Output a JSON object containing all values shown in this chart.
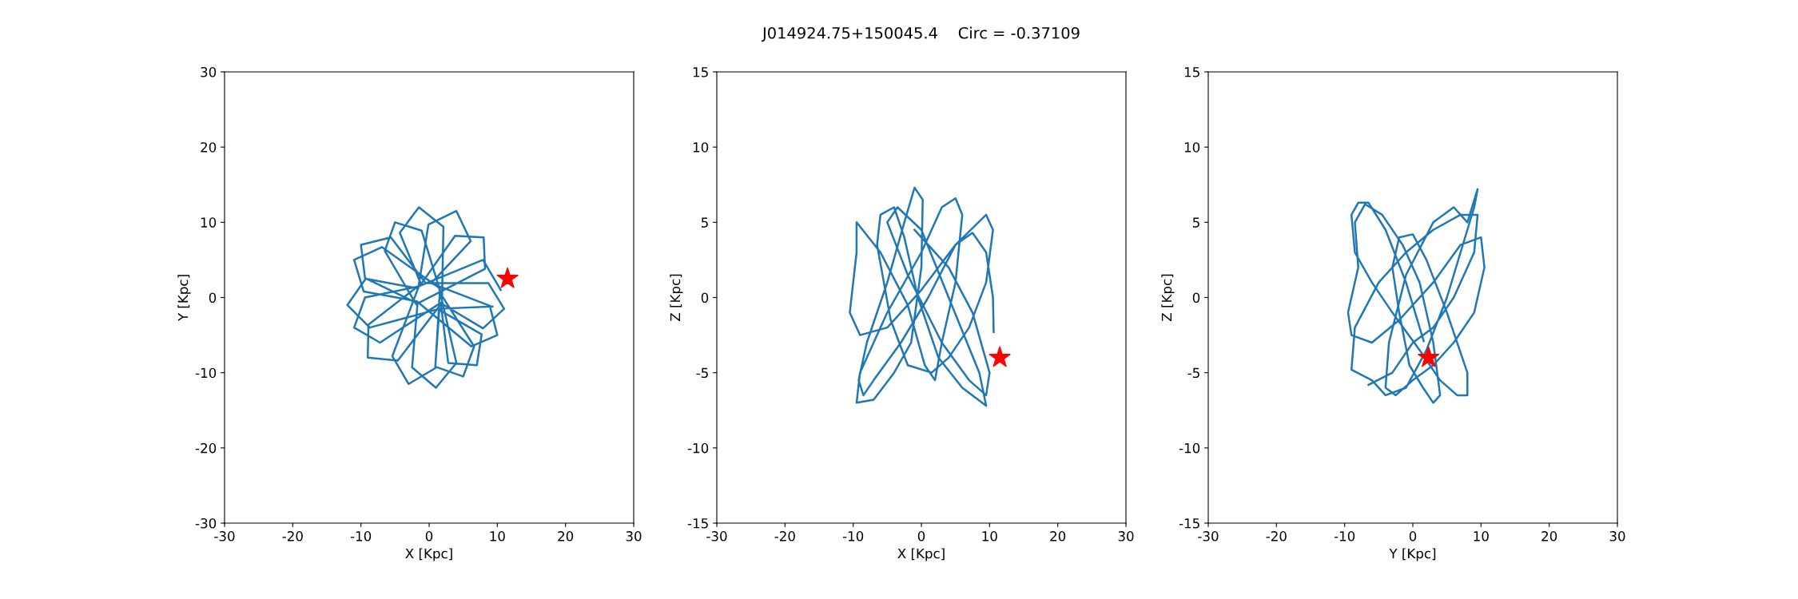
{
  "chart_data": [
    {
      "type": "line",
      "xlabel": "X [Kpc]",
      "ylabel": "Y [Kpc]",
      "xlim": [
        -30,
        30
      ],
      "ylim": [
        -30,
        30
      ],
      "xticks": [
        -30,
        -20,
        -10,
        0,
        10,
        20,
        30
      ],
      "yticks": [
        -30,
        -20,
        -10,
        0,
        10,
        20,
        30
      ],
      "grid": false,
      "series": [
        {
          "color": "#1f77b4",
          "marker": "none",
          "x": [
            10.5,
            7.9,
            -1.5,
            -5.4,
            -3,
            0.9,
            1.6,
            -6.9,
            -11,
            -9.6,
            -1.8,
            6.2,
            10,
            8.9,
            0.3,
            6.1,
            4,
            -0.1,
            -1.6,
            -9.3,
            -12,
            -8.7,
            1.5,
            0.9,
            5,
            6.6,
            1.9,
            2.1,
            -1.5,
            -4.3,
            -1.2,
            -8.9,
            -9,
            -4.6,
            1.8,
            7.9,
            11,
            8.7,
            -0.5,
            -5.6,
            -10,
            -9.4,
            -1.7,
            -2.5,
            1,
            4,
            1.4,
            -1.1,
            -5,
            -6.5,
            -1.9,
            8.2,
            8,
            3.8,
            -1.4,
            -9.4,
            -11,
            -7.2,
            1.7,
            2.8,
            7,
            7.7,
            1.2,
            9.3
          ],
          "values": [
            1.0,
            5.0,
            1.5,
            -7.8,
            -11.5,
            -9.4,
            1.2,
            6.7,
            5,
            0.8,
            -0.5,
            -6.5,
            -5,
            -1.1,
            1.9,
            7.5,
            11.5,
            9.7,
            1.2,
            2.5,
            -1,
            -4.0,
            -1.5,
            -9.2,
            -10.5,
            -6.5,
            0.2,
            9.4,
            12,
            8.6,
            1.8,
            -3.6,
            -8,
            -8.4,
            -0.8,
            -4.1,
            -1.5,
            1.9,
            1.9,
            8.0,
            7,
            2.6,
            -0.8,
            -9.3,
            -12,
            -8.7,
            1.5,
            8.9,
            10,
            6.2,
            -0.9,
            3.8,
            8,
            8.2,
            1.5,
            0,
            -4,
            -6.0,
            -0.7,
            -8.7,
            -9,
            -4.9,
            -1.5,
            -1.2
          ]
        },
        {
          "type": "scatter",
          "color": "#ff0000",
          "marker": "star",
          "x": [
            11.5
          ],
          "values": [
            2.5
          ]
        }
      ]
    },
    {
      "type": "line",
      "title": "J014924.75+150045.4    Circ = -0.37109",
      "xlabel": "X [Kpc]",
      "ylabel": "Z [Kpc]",
      "xlim": [
        -30,
        30
      ],
      "ylim": [
        -15,
        15
      ],
      "xticks": [
        -30,
        -20,
        -10,
        0,
        10,
        20,
        30
      ],
      "yticks": [
        -15,
        -10,
        -5,
        0,
        5,
        10,
        15
      ],
      "grid": false,
      "series": [
        {
          "color": "#1f77b4",
          "marker": "none",
          "x": [
            10.6,
            10.5,
            9.5,
            7.5,
            5,
            1,
            -3,
            -7,
            -8.5,
            -9.2,
            -8,
            -5,
            -2.5,
            -1,
            0.2,
            0,
            -1.5,
            -4,
            -7,
            -9.5,
            -9,
            -5,
            0,
            3,
            5,
            6,
            5,
            3,
            2,
            0.5,
            -2,
            -6,
            -9.5,
            -9.5,
            -10.5,
            -9,
            -5,
            0,
            5,
            9.5,
            10.5,
            9.5,
            7,
            4,
            1.5,
            -2,
            -4.5,
            -6.5,
            -6,
            -4,
            -2.5,
            -0.5,
            2.5,
            6,
            9.5,
            8.5,
            4,
            0,
            -3.5,
            -5,
            -2,
            3,
            7,
            9.5,
            10,
            7.5,
            4,
            -1
          ],
          "values": [
            -2.3,
            0,
            3,
            4.3,
            3.5,
            0,
            -3,
            -5.5,
            -6.5,
            -5.5,
            -3,
            1,
            5,
            7.3,
            6.5,
            2,
            -3,
            -5,
            -6.8,
            -7,
            -5,
            -1,
            3,
            6,
            6.6,
            5.5,
            1,
            -3,
            -5.5,
            -4.5,
            -0.5,
            3,
            5,
            3,
            -1,
            -2.5,
            -2,
            0.5,
            3.5,
            5.5,
            4.5,
            1,
            -2,
            -4,
            -5,
            -4.5,
            -1.5,
            3.5,
            5.5,
            6,
            4,
            0,
            -4,
            -6,
            -7.2,
            -5,
            0,
            4.5,
            6,
            5,
            1.5,
            -3,
            -5.5,
            -6.5,
            -5,
            -1,
            2,
            4.5
          ]
        },
        {
          "type": "scatter",
          "color": "#ff0000",
          "marker": "star",
          "x": [
            11.5
          ],
          "values": [
            -4
          ]
        }
      ]
    },
    {
      "type": "line",
      "xlabel": "Y [Kpc]",
      "ylabel": "Z [Kpc]",
      "xlim": [
        -30,
        30
      ],
      "ylim": [
        -15,
        15
      ],
      "xticks": [
        -30,
        -20,
        -10,
        0,
        10,
        20,
        30
      ],
      "yticks": [
        -15,
        -10,
        -5,
        0,
        5,
        10,
        15
      ],
      "grid": false,
      "series": [
        {
          "color": "#1f77b4",
          "marker": "none",
          "x": [
            1.6,
            1,
            -1,
            -4,
            -6.5,
            -8,
            -9,
            -8.5,
            -6,
            -3,
            1,
            4,
            6.5,
            8,
            8,
            5,
            2,
            0,
            -2,
            -3,
            -2,
            -0.5,
            1.5,
            3,
            4,
            3,
            1,
            -1.5,
            -4.5,
            -7,
            -8.5,
            -8,
            -9.5,
            -9,
            -6,
            -2,
            3,
            7,
            10,
            10.5,
            9,
            6,
            3,
            0,
            -2.5,
            -4,
            -3.5,
            -1,
            3,
            6,
            8,
            9.5,
            9,
            5,
            2,
            -1,
            -4,
            -6,
            -9,
            -8.5,
            -5,
            -1,
            3,
            7,
            9.5,
            9,
            6,
            3,
            0,
            -3,
            -6.5
          ],
          "values": [
            -2.9,
            -2,
            1,
            4.5,
            6.3,
            6.3,
            5.5,
            3,
            1,
            -1,
            -3.5,
            -5.5,
            -6.5,
            -6.5,
            -5,
            -1,
            2.5,
            4.2,
            4,
            2,
            -1,
            -4.5,
            -6,
            -7,
            -6.5,
            -3,
            1,
            3.5,
            5.5,
            6.2,
            5,
            2,
            -1,
            -2.5,
            -3,
            -1.5,
            1,
            3.5,
            4,
            2,
            -1,
            -3,
            -4.5,
            -5.5,
            -6.5,
            -6,
            -3,
            1.5,
            5,
            6,
            5,
            7.2,
            6,
            0,
            -3.5,
            -6,
            -6.5,
            -5.5,
            -4.8,
            -2,
            1,
            3,
            4.5,
            5.5,
            5.5,
            3,
            0,
            -2,
            -3,
            -5,
            -5.8
          ]
        },
        {
          "type": "scatter",
          "color": "#ff0000",
          "marker": "star",
          "x": [
            2.3
          ],
          "values": [
            -4
          ]
        }
      ]
    }
  ]
}
